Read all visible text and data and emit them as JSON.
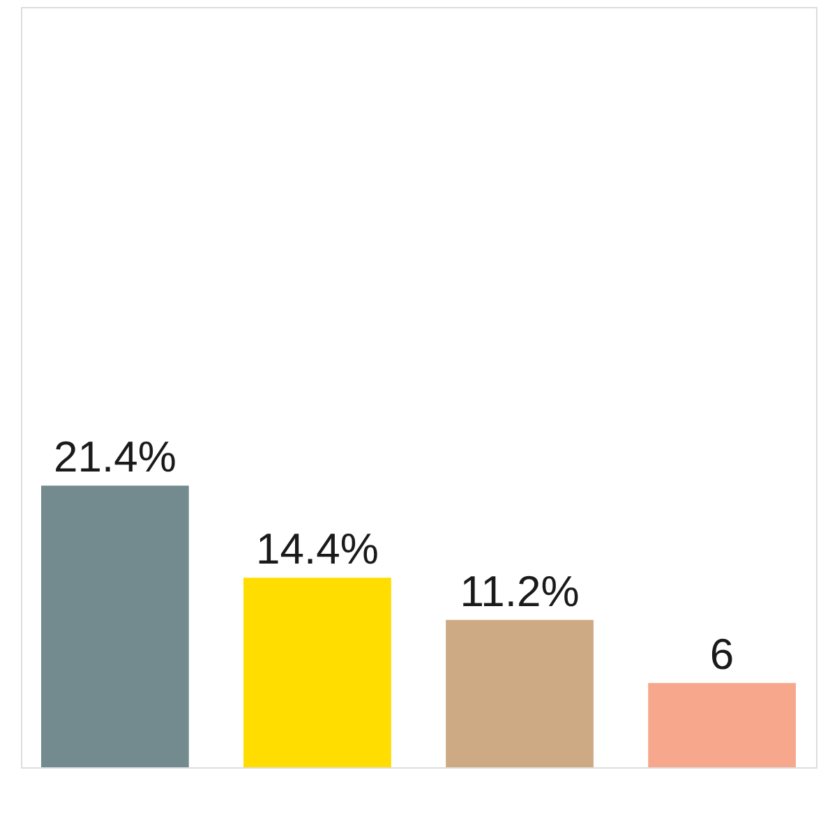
{
  "chart_data": {
    "type": "bar",
    "categories": [
      null,
      null,
      null,
      null
    ],
    "values": [
      21.4,
      14.4,
      11.2,
      6.4
    ],
    "colors": [
      "#738a8f",
      "#ffdd00",
      "#cdaa84",
      "#f6a78c"
    ],
    "value_labels": [
      "21.4%",
      "14.4%",
      "11.2%",
      "6"
    ],
    "tick_labels": false
  }
}
